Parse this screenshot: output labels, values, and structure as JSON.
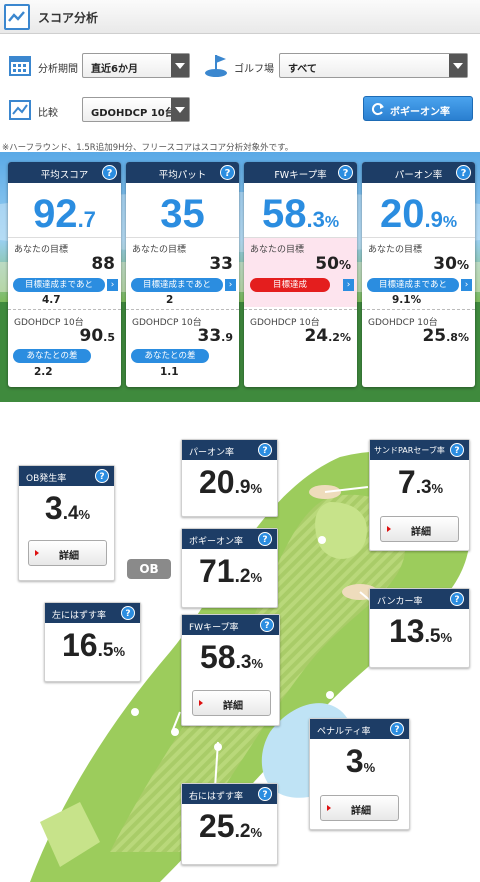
{
  "header": {
    "title": "スコア分析",
    "icon": "chart-line-icon"
  },
  "filters": {
    "period_label": "分析期間",
    "period_value": "直近6か月",
    "golf_label": "ゴルフ場",
    "golf_value": "すべて",
    "compare_label": "比較",
    "compare_value": "GDOHDCP 10台",
    "bogey_button": "ボギーオン率"
  },
  "note": "※ハーフラウンド、1.5R追加9H分、フリースコアはスコア分析対象外です。",
  "cards": [
    {
      "title": "平均スコア",
      "value_main": "92",
      "value_sub": ".7",
      "value_unit": "",
      "target_label": "あなたの目標",
      "target_main": "88",
      "target_unit": "",
      "status_label": "目標達成まであと",
      "status_value": "4.7",
      "status_color": "#2b8de0",
      "compare_label": "GDOHDCP 10台",
      "compare_main": "90",
      "compare_sub": ".5",
      "compare_unit": "",
      "diff_label": "あなたとの差",
      "diff_value": "2.2"
    },
    {
      "title": "平均パット",
      "value_main": "35",
      "value_sub": "",
      "value_unit": "",
      "target_label": "あなたの目標",
      "target_main": "33",
      "target_unit": "",
      "status_label": "目標達成まであと",
      "status_value": "2",
      "status_color": "#2b8de0",
      "compare_label": "GDOHDCP 10台",
      "compare_main": "33",
      "compare_sub": ".9",
      "compare_unit": "",
      "diff_label": "あなたとの差",
      "diff_value": "1.1"
    },
    {
      "title": "FWキープ率",
      "value_main": "58",
      "value_sub": ".3",
      "value_unit": "%",
      "target_label": "あなたの目標",
      "target_main": "50",
      "target_unit": "%",
      "status_label": "目標達成",
      "status_value": "",
      "status_color": "#e41e1e",
      "compare_label": "GDOHDCP 10台",
      "compare_main": "24",
      "compare_sub": ".2",
      "compare_unit": "%",
      "diff_label": "",
      "diff_value": ""
    },
    {
      "title": "パーオン率",
      "value_main": "20",
      "value_sub": ".9",
      "value_unit": "%",
      "target_label": "あなたの目標",
      "target_main": "30",
      "target_unit": "%",
      "status_label": "目標達成まであと",
      "status_value": "9.1%",
      "status_color": "#2b8de0",
      "compare_label": "GDOHDCP 10台",
      "compare_main": "25",
      "compare_sub": ".8",
      "compare_unit": "%",
      "diff_label": "",
      "diff_value": ""
    }
  ],
  "course": {
    "ob_label": "OB",
    "detail_label": "詳細",
    "stats": [
      {
        "name": "OB発生率",
        "main": "3",
        "sub": ".4",
        "unit": "%",
        "has_detail": true
      },
      {
        "name": "パーオン率",
        "main": "20",
        "sub": ".9",
        "unit": "%",
        "has_detail": false
      },
      {
        "name": "サンドPARセーブ率",
        "main": "7",
        "sub": ".3",
        "unit": "%",
        "has_detail": true
      },
      {
        "name": "ボギーオン率",
        "main": "71",
        "sub": ".2",
        "unit": "%",
        "has_detail": false
      },
      {
        "name": "左にはずす率",
        "main": "16",
        "sub": ".5",
        "unit": "%",
        "has_detail": false
      },
      {
        "name": "バンカー率",
        "main": "13",
        "sub": ".5",
        "unit": "%",
        "has_detail": false
      },
      {
        "name": "FWキープ率",
        "main": "58",
        "sub": ".3",
        "unit": "%",
        "has_detail": true
      },
      {
        "name": "ペナルティ率",
        "main": "3",
        "sub": "",
        "unit": "%",
        "has_detail": true
      },
      {
        "name": "右にはずす率",
        "main": "25",
        "sub": ".2",
        "unit": "%",
        "has_detail": false
      }
    ]
  },
  "colors": {
    "accent": "#2b8de0",
    "header_navy": "#1d3d66",
    "alert_red": "#e41e1e"
  }
}
